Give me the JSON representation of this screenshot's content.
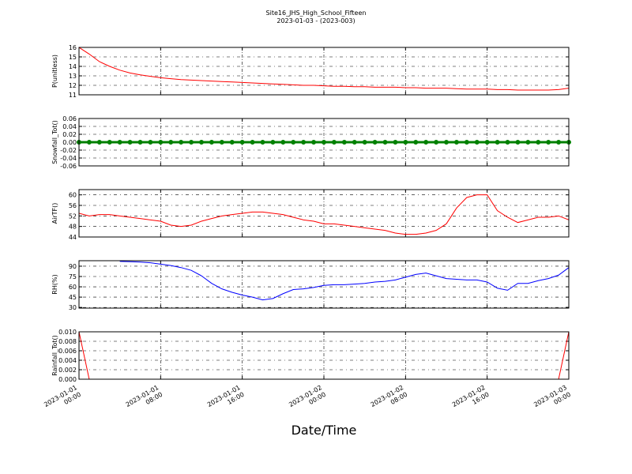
{
  "title": "Site16_JHS_High_School_Fifteen",
  "subtitle": "2023-01-03 - (2023-003)",
  "xlabel": "Date/Time",
  "xlim": [
    "2023-01-01 00:00",
    "2023-01-03 00:00"
  ],
  "xticks": [
    "2023-01-01 00:00",
    "2023-01-01 08:00",
    "2023-01-01 16:00",
    "2023-01-02 00:00",
    "2023-01-02 08:00",
    "2023-01-02 16:00",
    "2023-01-03 00:00"
  ],
  "x": [
    "2023-01-01 00:00",
    "2023-01-01 01:00",
    "2023-01-01 02:00",
    "2023-01-01 03:00",
    "2023-01-01 04:00",
    "2023-01-01 05:00",
    "2023-01-01 06:00",
    "2023-01-01 07:00",
    "2023-01-01 08:00",
    "2023-01-01 09:00",
    "2023-01-01 10:00",
    "2023-01-01 11:00",
    "2023-01-01 12:00",
    "2023-01-01 13:00",
    "2023-01-01 14:00",
    "2023-01-01 15:00",
    "2023-01-01 16:00",
    "2023-01-01 17:00",
    "2023-01-01 18:00",
    "2023-01-01 19:00",
    "2023-01-01 20:00",
    "2023-01-01 21:00",
    "2023-01-01 22:00",
    "2023-01-01 23:00",
    "2023-01-02 00:00",
    "2023-01-02 01:00",
    "2023-01-02 02:00",
    "2023-01-02 03:00",
    "2023-01-02 04:00",
    "2023-01-02 05:00",
    "2023-01-02 06:00",
    "2023-01-02 07:00",
    "2023-01-02 08:00",
    "2023-01-02 09:00",
    "2023-01-02 10:00",
    "2023-01-02 11:00",
    "2023-01-02 12:00",
    "2023-01-02 13:00",
    "2023-01-02 14:00",
    "2023-01-02 15:00",
    "2023-01-02 16:00",
    "2023-01-02 17:00",
    "2023-01-02 18:00",
    "2023-01-02 19:00",
    "2023-01-02 20:00",
    "2023-01-02 21:00",
    "2023-01-02 22:00",
    "2023-01-02 23:00",
    "2023-01-03 00:00"
  ],
  "chart_data": [
    {
      "type": "line",
      "ylabel": "P(unitless)",
      "color": "#ff0000",
      "grid": true,
      "ylim": [
        11,
        16
      ],
      "yticks": [
        11,
        12,
        13,
        14,
        15,
        16
      ],
      "values": [
        16.0,
        15.3,
        14.5,
        14.0,
        13.6,
        13.3,
        13.1,
        12.95,
        12.8,
        12.7,
        12.6,
        12.55,
        12.5,
        12.45,
        12.4,
        12.35,
        12.3,
        12.25,
        12.2,
        12.15,
        12.1,
        12.05,
        12.0,
        12.0,
        11.95,
        11.9,
        11.9,
        11.85,
        11.85,
        11.8,
        11.8,
        11.8,
        11.75,
        11.75,
        11.7,
        11.7,
        11.7,
        11.65,
        11.6,
        11.6,
        11.6,
        11.55,
        11.55,
        11.5,
        11.5,
        11.5,
        11.5,
        11.55,
        11.7
      ]
    },
    {
      "type": "line",
      "ylabel": "Snowfall_Tot()",
      "color": "#008000",
      "grid": true,
      "marker": "o",
      "ylim": [
        -0.06,
        0.06
      ],
      "yticks": [
        -0.06,
        -0.04,
        -0.02,
        {
          "value": 0,
          "label": "0.00"
        },
        0.02,
        0.04,
        0.06
      ],
      "values": [
        0,
        0,
        0,
        0,
        0,
        0,
        0,
        0,
        0,
        0,
        0,
        0,
        0,
        0,
        0,
        0,
        0,
        0,
        0,
        0,
        0,
        0,
        0,
        0,
        0,
        0,
        0,
        0,
        0,
        0,
        0,
        0,
        0,
        0,
        0,
        0,
        0,
        0,
        0,
        0,
        0,
        0,
        0,
        0,
        0,
        0,
        0,
        0,
        0
      ]
    },
    {
      "type": "line",
      "ylabel": "AirTF()",
      "color": "#ff0000",
      "grid": true,
      "ylim": [
        44,
        62
      ],
      "yticks": [
        44,
        48,
        52,
        56,
        60
      ],
      "values": [
        53,
        52,
        52.5,
        52.5,
        52,
        51.5,
        51,
        50.5,
        50,
        48.5,
        48,
        48.5,
        50,
        51,
        52,
        52.5,
        53,
        53.5,
        53.5,
        53,
        52.5,
        51.5,
        50.5,
        50,
        49,
        49,
        48.5,
        48,
        47.5,
        47,
        46.5,
        45.5,
        45,
        45,
        45.5,
        46.5,
        49,
        55,
        59,
        60,
        60,
        54,
        51.5,
        49.5,
        50.5,
        51.5,
        51.5,
        52,
        50.5
      ]
    },
    {
      "type": "line",
      "ylabel": "RH(%)",
      "color": "#0000ff",
      "grid": true,
      "ylim": [
        29,
        98
      ],
      "yticks": [
        30,
        45,
        60,
        75,
        90
      ],
      "values": [
        null,
        null,
        null,
        null,
        97,
        96.5,
        96,
        95,
        93,
        91,
        88,
        84,
        76,
        65,
        57,
        52,
        48,
        45,
        41,
        43,
        50,
        56,
        57,
        59,
        62,
        63,
        63,
        64,
        65,
        67,
        68,
        70,
        74,
        78,
        80,
        76,
        72,
        71,
        70,
        70,
        67,
        58,
        55,
        65,
        65,
        69,
        72,
        77,
        88
      ]
    },
    {
      "type": "line",
      "ylabel": "Rainfall_Tot()",
      "color": "#ff0000",
      "grid": true,
      "ylim": [
        0,
        0.01
      ],
      "yticks": [
        {
          "value": 0,
          "label": "0.000"
        },
        0.002,
        0.004,
        0.006,
        0.008,
        {
          "value": 0.01,
          "label": "0.010"
        }
      ],
      "values": [
        0.01,
        0,
        0,
        0,
        0,
        0,
        0,
        0,
        0,
        0,
        0,
        0,
        0,
        0,
        0,
        0,
        0,
        0,
        0,
        0,
        0,
        0,
        0,
        0,
        0,
        0,
        0,
        0,
        0,
        0,
        0,
        0,
        0,
        0,
        0,
        0,
        0,
        0,
        0,
        0,
        0,
        0,
        0,
        0,
        0,
        0,
        0,
        0,
        0.01
      ]
    }
  ]
}
